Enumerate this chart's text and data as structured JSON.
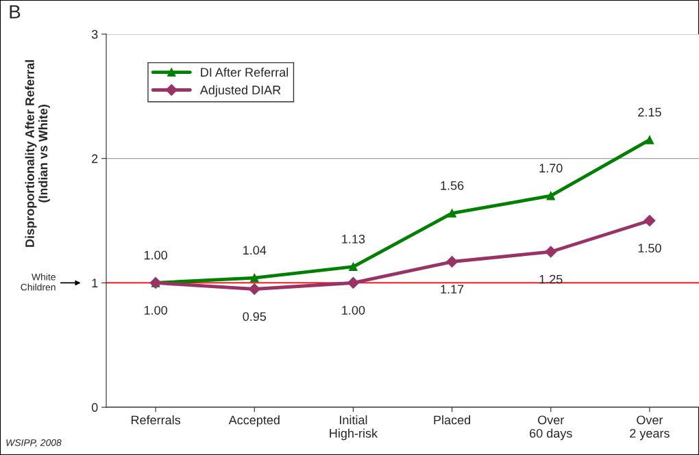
{
  "chart_data": {
    "type": "line",
    "ylabel": "Disproportionality After Referral\n(Indian vs White)",
    "categories": [
      "Referrals",
      "Accepted",
      "Initial\nHigh-risk",
      "Placed",
      "Over\n60 days",
      "Over\n2 years"
    ],
    "series": [
      {
        "name": "DI After Referral",
        "color": "#008000",
        "marker": "triangle",
        "values": [
          1.0,
          1.04,
          1.13,
          1.56,
          1.7,
          2.15
        ],
        "value_labels": [
          "1.00",
          "1.04",
          "1.13",
          "1.56",
          "1.70",
          "2.15"
        ]
      },
      {
        "name": "Adjusted DIAR",
        "color": "#993366",
        "marker": "diamond",
        "values": [
          1.0,
          0.95,
          1.0,
          1.17,
          1.25,
          1.5
        ],
        "value_labels": [
          "1.00",
          "0.95",
          "1.00",
          "1.17",
          "1.25",
          "1.50"
        ]
      }
    ],
    "ylim": [
      0,
      3
    ],
    "yticks": [
      0,
      1,
      2,
      3
    ],
    "grid": "y",
    "legend": "top left",
    "line_style": "solid",
    "ref_lines": [
      {
        "axis": "y",
        "value": 1,
        "color": "#ff0000"
      }
    ],
    "annotations": [
      "B",
      "WSIPP, 2008",
      "White\nChildren"
    ]
  }
}
